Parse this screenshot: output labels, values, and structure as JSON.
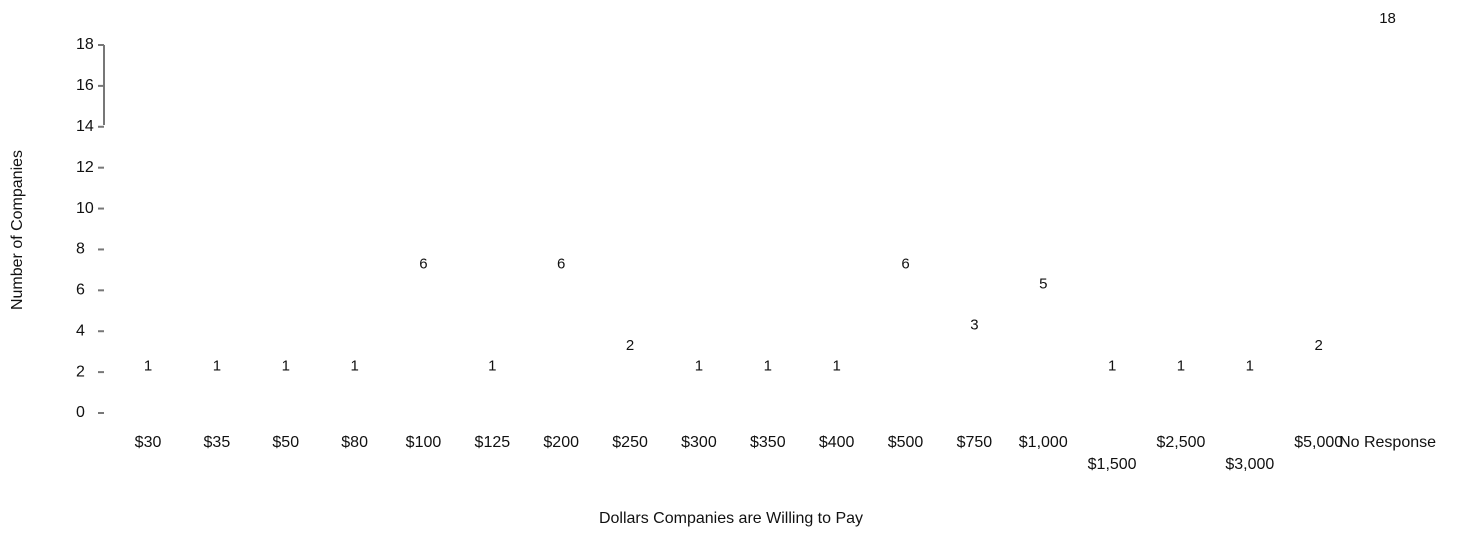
{
  "chart_data": {
    "type": "bar",
    "x_label": "Dollars Companies are Willing to Pay",
    "y_label": "Number of Companies",
    "categories": [
      "$30",
      "$35",
      "$50",
      "$80",
      "$100",
      "$125",
      "$200",
      "$250",
      "$300",
      "$350",
      "$400",
      "$500",
      "$750",
      "$1,000",
      "$1,500",
      "$2,500",
      "$3,000",
      "$5,000",
      "No Response"
    ],
    "values": [
      1,
      1,
      1,
      1,
      6,
      1,
      6,
      2,
      1,
      1,
      1,
      6,
      3,
      5,
      1,
      1,
      1,
      2,
      18
    ],
    "color": "#ffffff",
    "ylim": [
      0,
      18
    ],
    "yticks": [
      0,
      2,
      4,
      6,
      8,
      10,
      12,
      14,
      16,
      18
    ],
    "grid": false
  }
}
